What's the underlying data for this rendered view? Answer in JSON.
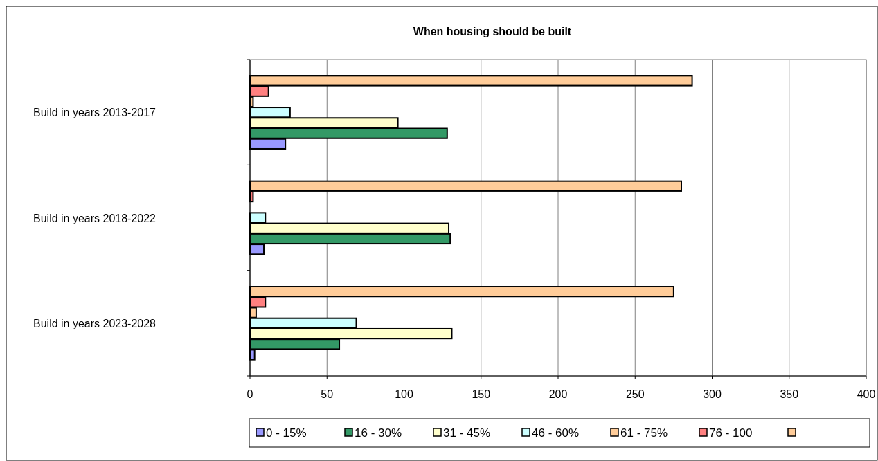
{
  "chart_data": {
    "type": "bar",
    "orientation": "horizontal",
    "title": "When housing should be built",
    "categories": [
      "Build in years 2013-2017",
      "Build in years 2018-2022",
      "Build in years 2023-2028"
    ],
    "series": [
      {
        "name": "0 - 15%",
        "color": "#9999ff",
        "values": [
          23,
          9,
          3
        ]
      },
      {
        "name": "16 - 30%",
        "color": "#339966",
        "values": [
          128,
          130,
          58
        ]
      },
      {
        "name": "31 - 45%",
        "color": "#ffffcc",
        "values": [
          96,
          129,
          131
        ]
      },
      {
        "name": "46 - 60%",
        "color": "#ccffff",
        "values": [
          26,
          10,
          69
        ]
      },
      {
        "name": "61 - 75%",
        "color": "#ffcc99",
        "values": [
          2,
          0,
          4
        ]
      },
      {
        "name": "76 - 100",
        "color": "#ff8080",
        "values": [
          12,
          2,
          10
        ]
      },
      {
        "color": "#ffcc99",
        "values": [
          287,
          280,
          275
        ]
      }
    ],
    "xlim": [
      0,
      400
    ],
    "xticks": [
      0,
      50,
      100,
      150,
      200,
      250,
      300,
      350,
      400
    ],
    "grid": "x",
    "legend": "bottom"
  }
}
